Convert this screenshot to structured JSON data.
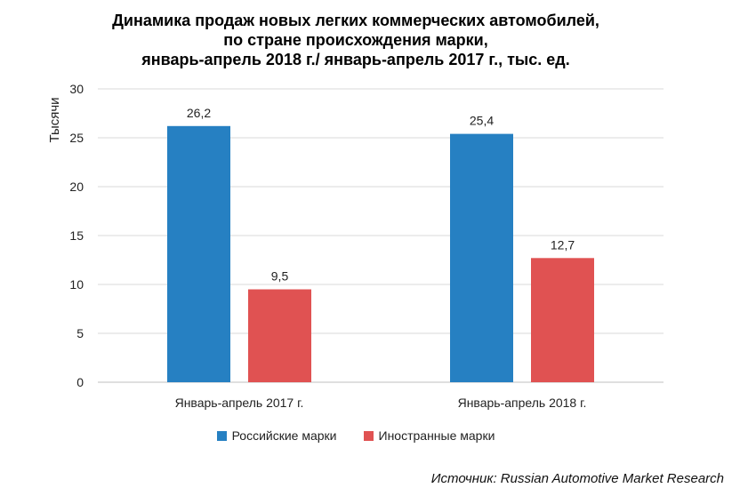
{
  "title": {
    "line1": "Динамика продаж новых легких коммерческих автомобилей,",
    "line2": "по стране происхождения марки,",
    "line3": "январь-апрель 2018 г./ январь-апрель 2017 г., тыс. ед."
  },
  "chart_data": {
    "type": "bar",
    "title": "Динамика продаж новых легких коммерческих автомобилей, по стране происхождения марки, январь-апрель 2018 г./ январь-апрель 2017 г., тыс. ед.",
    "xlabel": "",
    "ylabel": "Тысячи",
    "ylim": [
      0,
      30
    ],
    "yticks": [
      "0",
      "5",
      "10",
      "15",
      "20",
      "25",
      "30"
    ],
    "grid": true,
    "legend_position": "bottom",
    "categories": [
      "Январь-апрель 2017 г.",
      "Январь-апрель 2018 г."
    ],
    "series": [
      {
        "name": "Российские марки",
        "color": "#2680C2",
        "values": [
          26.2,
          25.4
        ],
        "labels": [
          "26,2",
          "25,4"
        ]
      },
      {
        "name": "Иностранные марки",
        "color": "#E05252",
        "values": [
          9.5,
          12.7
        ],
        "labels": [
          "9,5",
          "12,7"
        ]
      }
    ]
  },
  "source": "Источник: Russian Automotive Market Research"
}
